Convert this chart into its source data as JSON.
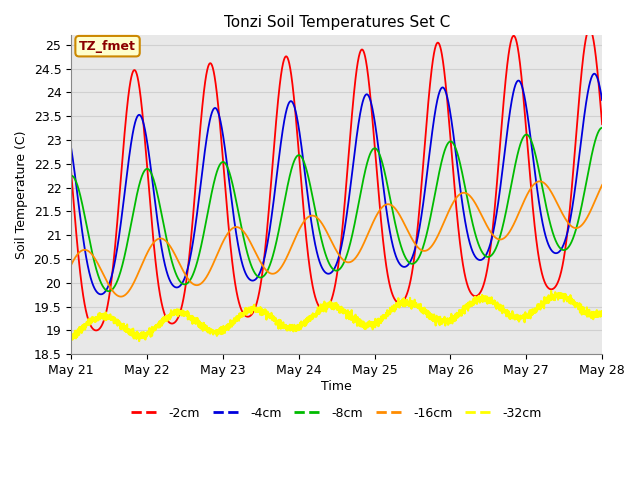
{
  "title": "Tonzi Soil Temperatures Set C",
  "xlabel": "Time",
  "ylabel": "Soil Temperature (C)",
  "ylim": [
    18.5,
    25.2
  ],
  "xlim": [
    0,
    168
  ],
  "xtick_positions": [
    0,
    24,
    48,
    72,
    96,
    120,
    144,
    168
  ],
  "xtick_labels": [
    "May 21",
    "May 22",
    "May 23",
    "May 24",
    "May 25",
    "May 26",
    "May 27",
    "May 28"
  ],
  "ytick_positions": [
    18.5,
    19.0,
    19.5,
    20.0,
    20.5,
    21.0,
    21.5,
    22.0,
    22.5,
    23.0,
    23.5,
    24.0,
    24.5,
    25.0
  ],
  "colors": {
    "2cm": "#FF0000",
    "4cm": "#0000DD",
    "8cm": "#00BB00",
    "16cm": "#FF8C00",
    "32cm": "#FFFF00"
  },
  "annotation_text": "TZ_fmet",
  "annotation_color": "#8B0000",
  "annotation_bg": "#FFFFCC",
  "annotation_border": "#CC8800",
  "grid_color": "#D0D0D0",
  "bg_color": "#E8E8E8"
}
